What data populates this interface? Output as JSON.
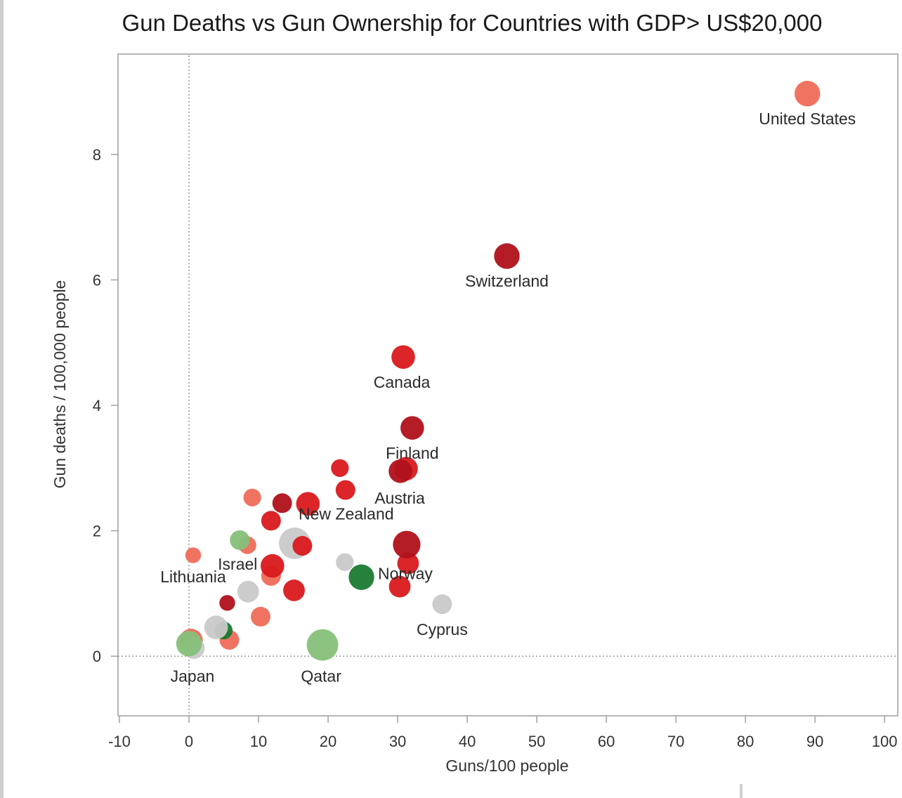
{
  "chart_data": {
    "type": "scatter",
    "title": "Gun Deaths vs Gun Ownership for Countries with GDP> US$20,000",
    "xlabel": "Guns/100 people",
    "ylabel": "Gun deaths / 100,000 people",
    "xlim": [
      -10.2,
      101.9
    ],
    "ylim": [
      -0.95,
      9.6
    ],
    "x_ticks": [
      -10,
      0,
      10,
      20,
      30,
      40,
      50,
      60,
      70,
      80,
      90,
      100
    ],
    "y_ticks": [
      0,
      2,
      4,
      6,
      8
    ],
    "reference_lines": {
      "x": 0,
      "y": 0
    },
    "grid": false,
    "legend": "none",
    "colors": {
      "dark_red": "#b0111a",
      "red": "#d9191c",
      "salmon": "#ef6b58",
      "grey": "#c9c9c9",
      "light_green": "#86c07a",
      "dark_green": "#1a7a32"
    },
    "points": [
      {
        "label": "",
        "x": 0.3,
        "y": 0.25,
        "size": 1.2,
        "color": "salmon"
      },
      {
        "label": "",
        "x": 0.7,
        "y": 0.13,
        "size": 1.1,
        "color": "grey"
      },
      {
        "label": "Japan",
        "x": 0.0,
        "y": 0.2,
        "size": 1.3,
        "color": "light_green"
      },
      {
        "label": "Qatar",
        "x": 19.2,
        "y": 0.18,
        "size": 1.6,
        "color": "light_green"
      },
      {
        "label": "",
        "x": 5.8,
        "y": 0.26,
        "size": 1.0,
        "color": "salmon"
      },
      {
        "label": "",
        "x": 5.0,
        "y": 0.41,
        "size": 0.9,
        "color": "dark_green"
      },
      {
        "label": "",
        "x": 3.9,
        "y": 0.46,
        "size": 1.2,
        "color": "grey"
      },
      {
        "label": "",
        "x": 10.3,
        "y": 0.63,
        "size": 1.0,
        "color": "salmon"
      },
      {
        "label": "",
        "x": 5.5,
        "y": 0.85,
        "size": 0.8,
        "color": "dark_red"
      },
      {
        "label": "",
        "x": 8.5,
        "y": 1.03,
        "size": 1.1,
        "color": "grey"
      },
      {
        "label": "",
        "x": 15.1,
        "y": 1.05,
        "size": 1.1,
        "color": "red"
      },
      {
        "label": "Cyprus",
        "x": 36.4,
        "y": 0.83,
        "size": 1.0,
        "color": "grey"
      },
      {
        "label": "",
        "x": 11.8,
        "y": 1.28,
        "size": 1.0,
        "color": "salmon"
      },
      {
        "label": "Israel",
        "x": 12.0,
        "y": 1.44,
        "size": 1.2,
        "color": "red"
      },
      {
        "label": "Lithuania",
        "x": 0.6,
        "y": 1.61,
        "size": 0.8,
        "color": "salmon"
      },
      {
        "label": "",
        "x": 22.4,
        "y": 1.5,
        "size": 0.9,
        "color": "grey"
      },
      {
        "label": "Norway",
        "x": 24.8,
        "y": 1.26,
        "size": 1.3,
        "color": "dark_green"
      },
      {
        "label": "",
        "x": 30.3,
        "y": 1.11,
        "size": 1.1,
        "color": "red"
      },
      {
        "label": "",
        "x": 31.5,
        "y": 1.48,
        "size": 1.1,
        "color": "red"
      },
      {
        "label": "",
        "x": 31.3,
        "y": 1.78,
        "size": 1.4,
        "color": "dark_red"
      },
      {
        "label": "",
        "x": 8.4,
        "y": 1.77,
        "size": 0.9,
        "color": "salmon"
      },
      {
        "label": "",
        "x": 7.3,
        "y": 1.85,
        "size": 1.0,
        "color": "light_green"
      },
      {
        "label": "",
        "x": 15.2,
        "y": 1.8,
        "size": 1.6,
        "color": "grey"
      },
      {
        "label": "",
        "x": 16.3,
        "y": 1.76,
        "size": 1.0,
        "color": "red"
      },
      {
        "label": "",
        "x": 11.8,
        "y": 2.16,
        "size": 1.0,
        "color": "red"
      },
      {
        "label": "",
        "x": 9.1,
        "y": 2.53,
        "size": 0.9,
        "color": "salmon"
      },
      {
        "label": "",
        "x": 13.4,
        "y": 2.44,
        "size": 1.0,
        "color": "dark_red"
      },
      {
        "label": "New Zealand",
        "x": 17.1,
        "y": 2.43,
        "size": 1.2,
        "color": "red"
      },
      {
        "label": "",
        "x": 21.7,
        "y": 3.0,
        "size": 0.9,
        "color": "red"
      },
      {
        "label": "",
        "x": 22.5,
        "y": 2.65,
        "size": 1.0,
        "color": "red"
      },
      {
        "label": "",
        "x": 31.2,
        "y": 2.99,
        "size": 1.2,
        "color": "red"
      },
      {
        "label": "Austria",
        "x": 30.4,
        "y": 2.95,
        "size": 1.2,
        "color": "dark_red"
      },
      {
        "label": "Finland",
        "x": 32.1,
        "y": 3.64,
        "size": 1.2,
        "color": "dark_red"
      },
      {
        "label": "Canada",
        "x": 30.8,
        "y": 4.77,
        "size": 1.2,
        "color": "red"
      },
      {
        "label": "Switzerland",
        "x": 45.7,
        "y": 6.38,
        "size": 1.3,
        "color": "dark_red"
      },
      {
        "label": "United States",
        "x": 88.9,
        "y": 8.97,
        "size": 1.3,
        "color": "salmon"
      }
    ],
    "annotations": [
      {
        "text": "United States",
        "x": 88.9,
        "y": 8.57
      },
      {
        "text": "Switzerland",
        "x": 45.7,
        "y": 5.98
      },
      {
        "text": "Canada",
        "x": 30.6,
        "y": 4.37
      },
      {
        "text": "Finland",
        "x": 32.1,
        "y": 3.24
      },
      {
        "text": "Austria",
        "x": 30.3,
        "y": 2.52
      },
      {
        "text": "New Zealand",
        "x": 22.6,
        "y": 2.27
      },
      {
        "text": "Israel",
        "x": 7.0,
        "y": 1.47
      },
      {
        "text": "Lithuania",
        "x": 0.6,
        "y": 1.27
      },
      {
        "text": "Norway",
        "x": 31.1,
        "y": 1.32
      },
      {
        "text": "Cyprus",
        "x": 36.4,
        "y": 0.43
      },
      {
        "text": "Japan",
        "x": 0.5,
        "y": -0.32
      },
      {
        "text": "Qatar",
        "x": 19.0,
        "y": -0.32
      }
    ]
  }
}
